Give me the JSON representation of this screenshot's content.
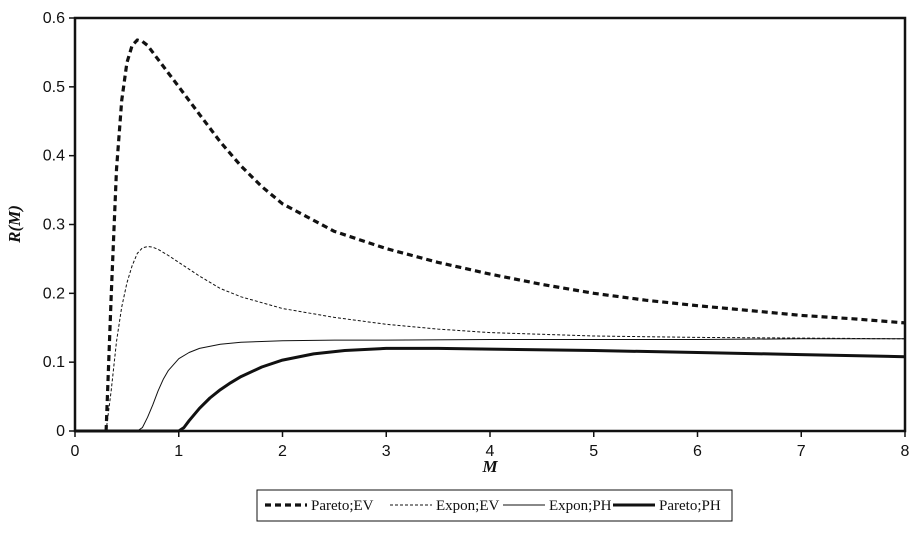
{
  "chart_data": {
    "type": "line",
    "xlabel": "M",
    "ylabel": "R(M)",
    "xlim": [
      0,
      8
    ],
    "ylim": [
      0,
      0.6
    ],
    "xticks": [
      "0",
      "1",
      "2",
      "3",
      "4",
      "5",
      "6",
      "7",
      "8"
    ],
    "yticks": [
      "0",
      "0.1",
      "0.2",
      "0.3",
      "0.4",
      "0.5",
      "0.6"
    ],
    "grid": false,
    "legend_position": "bottom",
    "series": [
      {
        "name": "Pareto;EV",
        "style": "thick-dashed",
        "color": "#111111",
        "x": [
          0.3,
          0.35,
          0.4,
          0.45,
          0.5,
          0.55,
          0.6,
          0.65,
          0.7,
          0.8,
          0.9,
          1.0,
          1.2,
          1.4,
          1.6,
          1.8,
          2.0,
          2.5,
          3.0,
          3.5,
          4.0,
          4.5,
          5.0,
          5.5,
          6.0,
          6.5,
          7.0,
          7.5,
          8.0
        ],
        "y": [
          0.0,
          0.2,
          0.38,
          0.48,
          0.535,
          0.56,
          0.568,
          0.566,
          0.56,
          0.54,
          0.52,
          0.5,
          0.46,
          0.42,
          0.385,
          0.355,
          0.33,
          0.29,
          0.265,
          0.245,
          0.228,
          0.213,
          0.2,
          0.19,
          0.182,
          0.175,
          0.168,
          0.163,
          0.157
        ]
      },
      {
        "name": "Expon;EV",
        "style": "thin-dashed",
        "color": "#111111",
        "x": [
          0.3,
          0.35,
          0.4,
          0.45,
          0.5,
          0.55,
          0.6,
          0.65,
          0.7,
          0.75,
          0.8,
          0.9,
          1.0,
          1.2,
          1.4,
          1.6,
          2.0,
          2.5,
          3.0,
          3.5,
          4.0,
          5.0,
          6.0,
          7.0,
          8.0
        ],
        "y": [
          0.0,
          0.06,
          0.13,
          0.18,
          0.215,
          0.24,
          0.258,
          0.266,
          0.268,
          0.267,
          0.264,
          0.255,
          0.245,
          0.225,
          0.207,
          0.195,
          0.178,
          0.165,
          0.155,
          0.148,
          0.143,
          0.138,
          0.136,
          0.135,
          0.134
        ]
      },
      {
        "name": "Expon;PH",
        "style": "thin-solid",
        "color": "#111111",
        "x": [
          0,
          0.6,
          0.65,
          0.7,
          0.75,
          0.8,
          0.85,
          0.9,
          1.0,
          1.1,
          1.2,
          1.4,
          1.6,
          1.8,
          2.0,
          2.5,
          3.0,
          4.0,
          5.0,
          6.0,
          7.0,
          8.0
        ],
        "y": [
          0,
          0,
          0.005,
          0.02,
          0.038,
          0.058,
          0.075,
          0.088,
          0.105,
          0.114,
          0.12,
          0.126,
          0.129,
          0.13,
          0.131,
          0.132,
          0.132,
          0.133,
          0.133,
          0.133,
          0.134,
          0.134
        ]
      },
      {
        "name": "Pareto;PH",
        "style": "thick-solid",
        "color": "#111111",
        "x": [
          0,
          1.0,
          1.05,
          1.1,
          1.2,
          1.3,
          1.4,
          1.5,
          1.6,
          1.8,
          2.0,
          2.3,
          2.6,
          3.0,
          3.5,
          4.0,
          5.0,
          6.0,
          7.0,
          8.0
        ],
        "y": [
          0,
          0,
          0.005,
          0.015,
          0.033,
          0.048,
          0.06,
          0.07,
          0.079,
          0.093,
          0.103,
          0.112,
          0.117,
          0.12,
          0.12,
          0.119,
          0.117,
          0.114,
          0.111,
          0.108
        ]
      }
    ]
  }
}
